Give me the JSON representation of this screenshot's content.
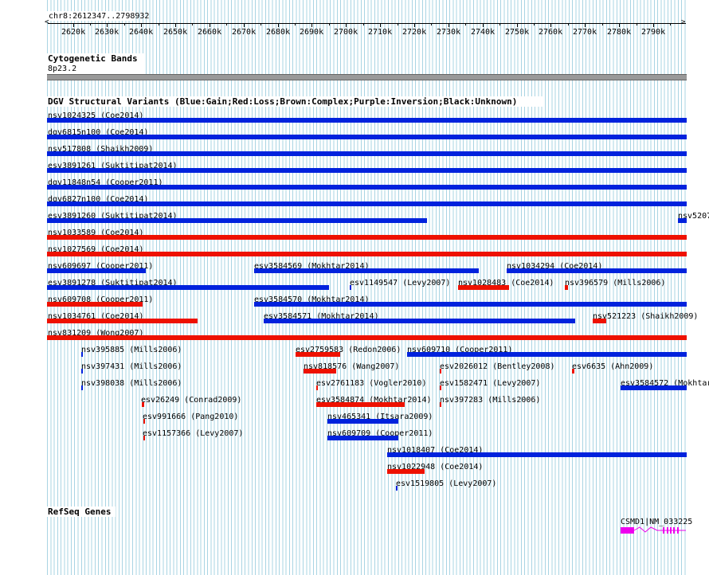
{
  "locus": "chr8:2612347..2798932",
  "ruler": {
    "ticks": [
      "2620k",
      "2630k",
      "2640k",
      "2650k",
      "2660k",
      "2670k",
      "2680k",
      "2690k",
      "2700k",
      "2710k",
      "2720k",
      "2730k",
      "2740k",
      "2750k",
      "2760k",
      "2770k",
      "2780k",
      "2790k"
    ]
  },
  "cytoband": {
    "title": "Cytogenetic Bands",
    "band": "8p23.2"
  },
  "dgv": {
    "title": "DGV Structural Variants (Blue:Gain;Red:Loss;Brown:Complex;Purple:Inversion;Black:Unknown)",
    "colors": {
      "gain": "#0022dd",
      "loss": "#ee1100"
    },
    "features": [
      {
        "label": "nsv1024325 (Coe2014)",
        "type": "gain"
      },
      {
        "label": "dgv6815n100 (Coe2014)",
        "type": "gain"
      },
      {
        "label": "nsv517808 (Shaikh2009)",
        "type": "gain"
      },
      {
        "label": "esv3891261 (Suktitipat2014)",
        "type": "gain"
      },
      {
        "label": "dgv11848n54 (Cooper2011)",
        "type": "gain"
      },
      {
        "label": "dgv6827n100 (Coe2014)",
        "type": "gain"
      },
      {
        "label": "esv3891260 (Suktitipat2014)",
        "type": "gain"
      },
      {
        "label": "nsv5207",
        "type": "gain"
      },
      {
        "label": "nsv1033589 (Coe2014)",
        "type": "loss"
      },
      {
        "label": "nsv1027569 (Coe2014)",
        "type": "loss"
      },
      {
        "label": "nsv609697 (Cooper2011)",
        "type": "gain"
      },
      {
        "label": "esv3584569 (Mokhtar2014)",
        "type": "gain"
      },
      {
        "label": "nsv1034294 (Coe2014)",
        "type": "gain"
      },
      {
        "label": "esv3891278 (Suktitipat2014)",
        "type": "gain"
      },
      {
        "label": "esv1149547 (Levy2007)",
        "type": "gain"
      },
      {
        "label": "nsv1028483 (Coe2014)",
        "type": "loss"
      },
      {
        "label": "nsv396579 (Mills2006)",
        "type": "loss"
      },
      {
        "label": "nsv609708 (Cooper2011)",
        "type": "loss"
      },
      {
        "label": "esv3584570 (Mokhtar2014)",
        "type": "gain"
      },
      {
        "label": "nsv1034761 (Coe2014)",
        "type": "loss"
      },
      {
        "label": "esv3584571 (Mokhtar2014)",
        "type": "gain"
      },
      {
        "label": "nsv521223 (Shaikh2009)",
        "type": "loss"
      },
      {
        "label": "nsv831209 (Wong2007)",
        "type": "loss"
      },
      {
        "label": "nsv395885 (Mills2006)",
        "type": "gain"
      },
      {
        "label": "esv2759583 (Redon2006)",
        "type": "loss"
      },
      {
        "label": "nsv609710 (Cooper2011)",
        "type": "gain"
      },
      {
        "label": "nsv397431 (Mills2006)",
        "type": "gain"
      },
      {
        "label": "nsv818576 (Wang2007)",
        "type": "loss"
      },
      {
        "label": "esv2026012 (Bentley2008)",
        "type": "loss"
      },
      {
        "label": "esv6635 (Ahn2009)",
        "type": "loss"
      },
      {
        "label": "nsv398038 (Mills2006)",
        "type": "gain"
      },
      {
        "label": "esv2761183 (Vogler2010)",
        "type": "loss"
      },
      {
        "label": "esv1582471 (Levy2007)",
        "type": "loss"
      },
      {
        "label": "esv3584572 (Mokhtar",
        "type": "gain"
      },
      {
        "label": "esv26249 (Conrad2009)",
        "type": "loss"
      },
      {
        "label": "esv3584874 (Mokhtar2014)",
        "type": "loss"
      },
      {
        "label": "nsv397283 (Mills2006)",
        "type": "loss"
      },
      {
        "label": "esv991666 (Pang2010)",
        "type": "loss"
      },
      {
        "label": "nsv465341 (Itsara2009)",
        "type": "gain"
      },
      {
        "label": "esv1157366 (Levy2007)",
        "type": "loss"
      },
      {
        "label": "nsv609709 (Cooper2011)",
        "type": "gain"
      },
      {
        "label": "nsv1018407 (Coe2014)",
        "type": "gain"
      },
      {
        "label": "nsv1022948 (Coe2014)",
        "type": "loss"
      },
      {
        "label": "esv1519805 (Levy2007)",
        "type": "gain"
      }
    ]
  },
  "refseq": {
    "title": "RefSeq Genes",
    "gene": {
      "label": "CSMD1|NM_033225",
      "color": "#ee00ee"
    }
  }
}
